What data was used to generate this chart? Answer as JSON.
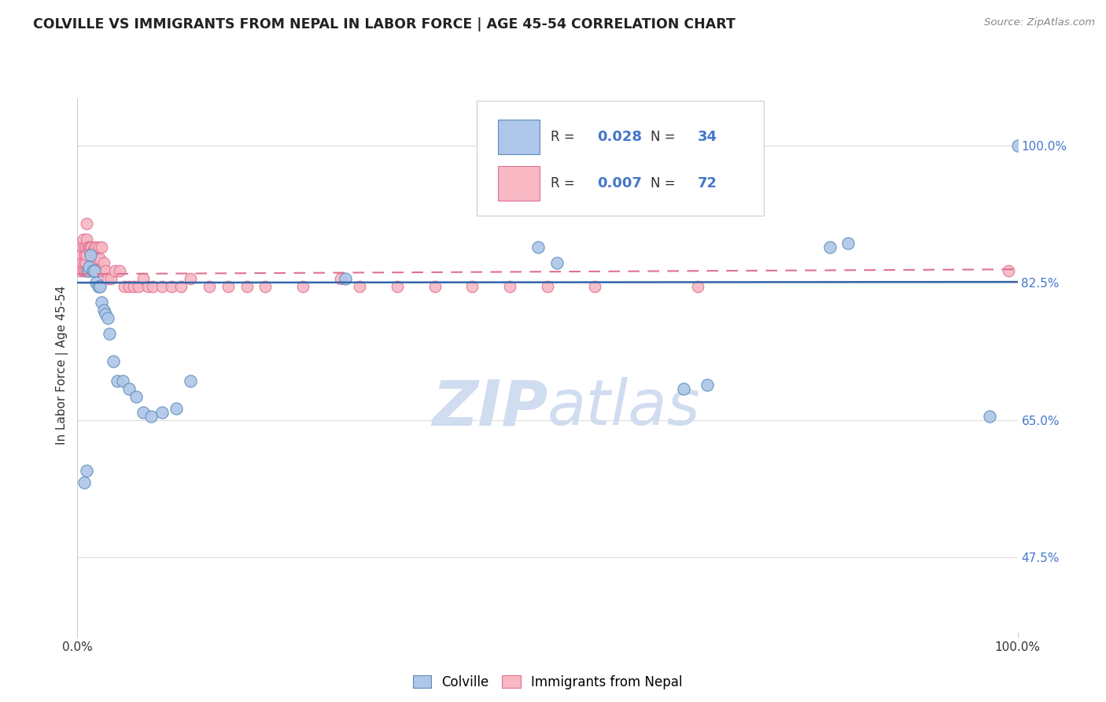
{
  "title": "COLVILLE VS IMMIGRANTS FROM NEPAL IN LABOR FORCE | AGE 45-54 CORRELATION CHART",
  "source": "Source: ZipAtlas.com",
  "ylabel": "In Labor Force | Age 45-54",
  "xlim": [
    0.0,
    1.0
  ],
  "ylim": [
    0.38,
    1.06
  ],
  "yticks": [
    0.475,
    0.65,
    0.825,
    1.0
  ],
  "ytick_labels": [
    "47.5%",
    "65.0%",
    "82.5%",
    "100.0%"
  ],
  "colville_color": "#aec6e8",
  "colville_edge_color": "#5b8db8",
  "nepal_color": "#f7b8c4",
  "nepal_edge_color": "#e07090",
  "trend_blue_color": "#3366aa",
  "trend_pink_color": "#e07090",
  "legend_R_blue": "0.028",
  "legend_N_blue": "34",
  "legend_R_pink": "0.007",
  "legend_N_pink": "72",
  "legend_label_blue": "Colville",
  "legend_label_pink": "Immigrants from Nepal",
  "grid_color": "#dddddd",
  "background_color": "#ffffff",
  "right_axis_color": "#4477cc",
  "watermark_color": "#d0ddf0",
  "colville_x": [
    0.007,
    0.01,
    0.011,
    0.012,
    0.014,
    0.016,
    0.018,
    0.02,
    0.022,
    0.024,
    0.026,
    0.028,
    0.03,
    0.032,
    0.034,
    0.038,
    0.042,
    0.048,
    0.055,
    0.062,
    0.07,
    0.078,
    0.09,
    0.105,
    0.12,
    0.285,
    0.49,
    0.51,
    0.645,
    0.67,
    0.8,
    0.82,
    0.97,
    1.0
  ],
  "colville_y": [
    0.57,
    0.585,
    0.84,
    0.845,
    0.86,
    0.84,
    0.84,
    0.825,
    0.82,
    0.82,
    0.8,
    0.79,
    0.785,
    0.78,
    0.76,
    0.725,
    0.7,
    0.7,
    0.69,
    0.68,
    0.66,
    0.655,
    0.66,
    0.665,
    0.7,
    0.83,
    0.87,
    0.85,
    0.69,
    0.695,
    0.87,
    0.875,
    0.655,
    1.0
  ],
  "nepal_x": [
    0.003,
    0.004,
    0.005,
    0.005,
    0.006,
    0.006,
    0.007,
    0.007,
    0.008,
    0.008,
    0.009,
    0.009,
    0.01,
    0.01,
    0.01,
    0.01,
    0.011,
    0.011,
    0.012,
    0.012,
    0.013,
    0.013,
    0.014,
    0.014,
    0.015,
    0.015,
    0.016,
    0.016,
    0.017,
    0.018,
    0.018,
    0.019,
    0.02,
    0.02,
    0.021,
    0.022,
    0.023,
    0.024,
    0.025,
    0.026,
    0.028,
    0.03,
    0.032,
    0.036,
    0.04,
    0.045,
    0.05,
    0.055,
    0.06,
    0.065,
    0.07,
    0.075,
    0.08,
    0.09,
    0.1,
    0.11,
    0.12,
    0.14,
    0.16,
    0.18,
    0.2,
    0.24,
    0.28,
    0.3,
    0.34,
    0.38,
    0.42,
    0.46,
    0.5,
    0.55,
    0.66,
    0.99
  ],
  "nepal_y": [
    0.84,
    0.86,
    0.85,
    0.87,
    0.84,
    0.88,
    0.85,
    0.87,
    0.84,
    0.86,
    0.85,
    0.87,
    0.84,
    0.86,
    0.88,
    0.9,
    0.84,
    0.87,
    0.84,
    0.87,
    0.84,
    0.865,
    0.84,
    0.87,
    0.845,
    0.87,
    0.84,
    0.865,
    0.85,
    0.84,
    0.87,
    0.855,
    0.84,
    0.87,
    0.855,
    0.84,
    0.87,
    0.855,
    0.84,
    0.87,
    0.85,
    0.84,
    0.83,
    0.83,
    0.84,
    0.84,
    0.82,
    0.82,
    0.82,
    0.82,
    0.83,
    0.82,
    0.82,
    0.82,
    0.82,
    0.82,
    0.83,
    0.82,
    0.82,
    0.82,
    0.82,
    0.82,
    0.83,
    0.82,
    0.82,
    0.82,
    0.82,
    0.82,
    0.82,
    0.82,
    0.82,
    0.84
  ],
  "blue_trend_y": [
    0.825,
    0.826
  ],
  "pink_trend_y_start": 0.836,
  "pink_trend_y_end": 0.842
}
